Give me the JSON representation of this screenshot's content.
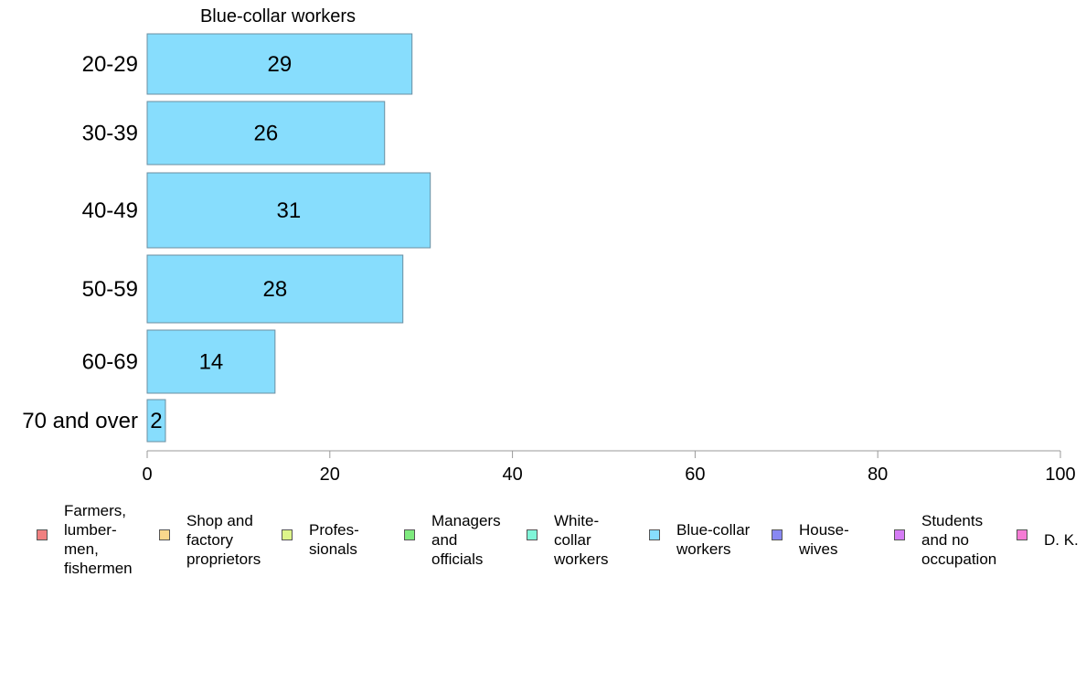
{
  "chart_data": {
    "type": "bar",
    "orientation": "horizontal",
    "title": "Blue-collar workers",
    "categories": [
      "20-29",
      "30-39",
      "40-49",
      "50-59",
      "60-69",
      "70 and over"
    ],
    "series": [
      {
        "name": "Blue-collar workers",
        "values": [
          29,
          26,
          31,
          28,
          14,
          2
        ],
        "color": "#87DDFD"
      }
    ],
    "data_labels": [
      "29",
      "26",
      "31",
      "28",
      "14",
      "2"
    ],
    "xlim": [
      0,
      100
    ],
    "xticks": [
      "0",
      "20",
      "40",
      "60",
      "80",
      "100"
    ],
    "grid": false,
    "legend_position": "bottom"
  },
  "legend": [
    {
      "label": "Farmers,\nlumber-\nmen,\nfishermen",
      "color": "#F08080"
    },
    {
      "label": "Shop and\nfactory\nproprietors",
      "color": "#FAD88C"
    },
    {
      "label": "Profes-\nsionals",
      "color": "#DDF58A"
    },
    {
      "label": "Managers\nand\nofficials",
      "color": "#7EEA7E"
    },
    {
      "label": "White-\ncollar\nworkers",
      "color": "#80F5D8"
    },
    {
      "label": "Blue-collar\nworkers",
      "color": "#87DDFD"
    },
    {
      "label": "House-\nwives",
      "color": "#8888F2"
    },
    {
      "label": "Students\nand no\noccupation",
      "color": "#D57CF5"
    },
    {
      "label": "D. K.",
      "color": "#F57CD5"
    }
  ]
}
